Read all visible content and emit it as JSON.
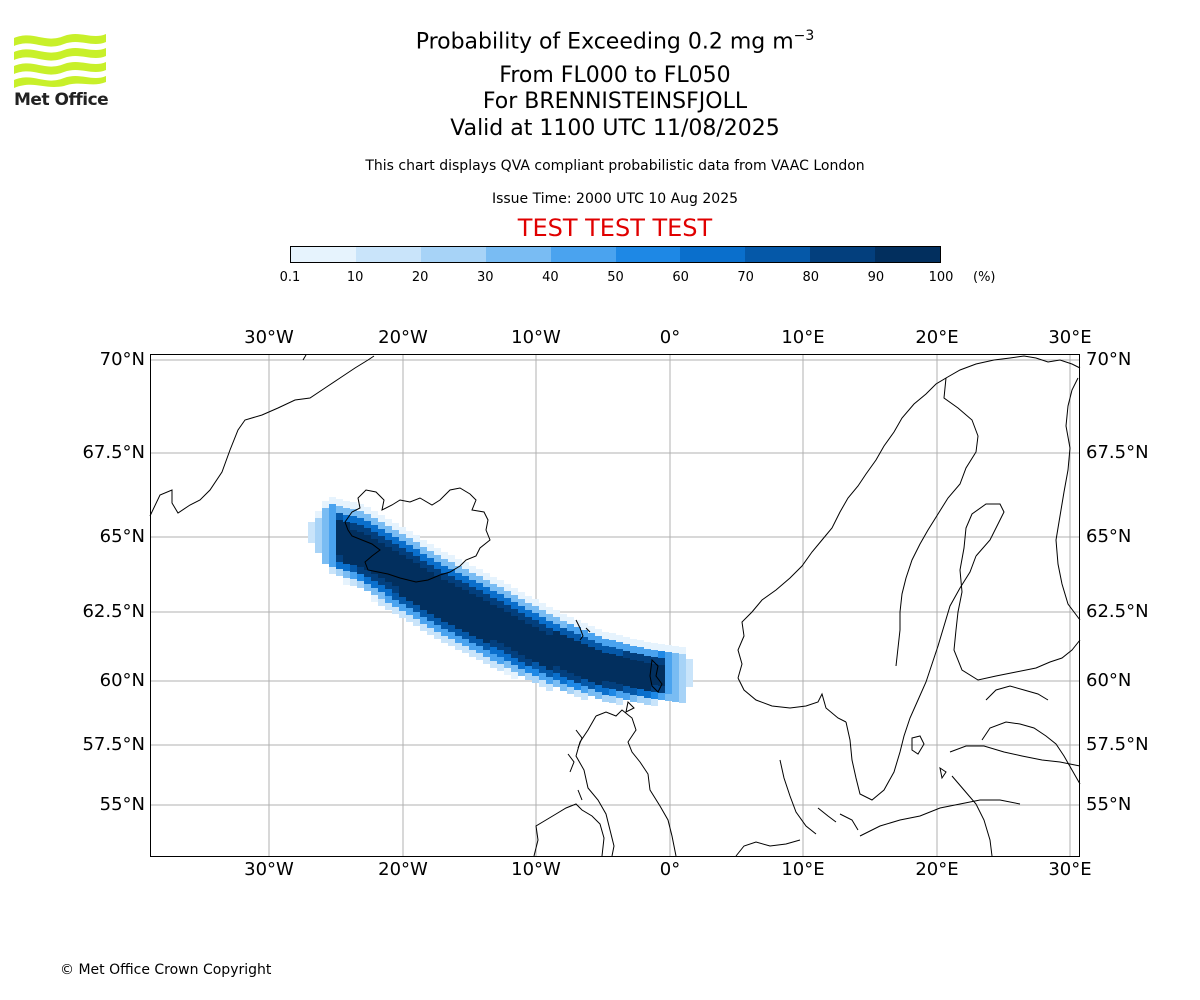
{
  "header": {
    "title_prefix": "Probability of Exceeding 0.2 mg m",
    "title_exponent": "−3",
    "line2": "From FL000 to FL050",
    "line3": "For BRENNISTEINSFJOLL",
    "line4": "Valid at 1100 UTC 11/08/2025",
    "note": "This chart displays QVA compliant probabilistic data from VAAC London",
    "issue_time": "Issue Time: 2000 UTC 10 Aug 2025",
    "test_banner": "TEST TEST TEST"
  },
  "logo": {
    "text": "Met Office",
    "color": "#c8f02a"
  },
  "colorbar": {
    "ticks": [
      "0.1",
      "10",
      "20",
      "30",
      "40",
      "50",
      "60",
      "70",
      "80",
      "90",
      "100"
    ],
    "unit": "(%)",
    "colors": [
      "#e6f3fd",
      "#c9e4fa",
      "#a7d3f7",
      "#79bcf3",
      "#4aa3ef",
      "#1e88e5",
      "#0a6fcc",
      "#0558a8",
      "#033f7d",
      "#022f5e"
    ]
  },
  "map": {
    "lon_labels": [
      "30°W",
      "20°W",
      "10°W",
      "0°",
      "10°E",
      "20°E",
      "30°E"
    ],
    "lat_labels": [
      "70°N",
      "67.5°N",
      "65°N",
      "62.5°N",
      "60°N",
      "57.5°N",
      "55°N"
    ],
    "plume_color_peak": "#022f5e"
  },
  "footer": {
    "copyright": "© Met Office Crown Copyright"
  }
}
